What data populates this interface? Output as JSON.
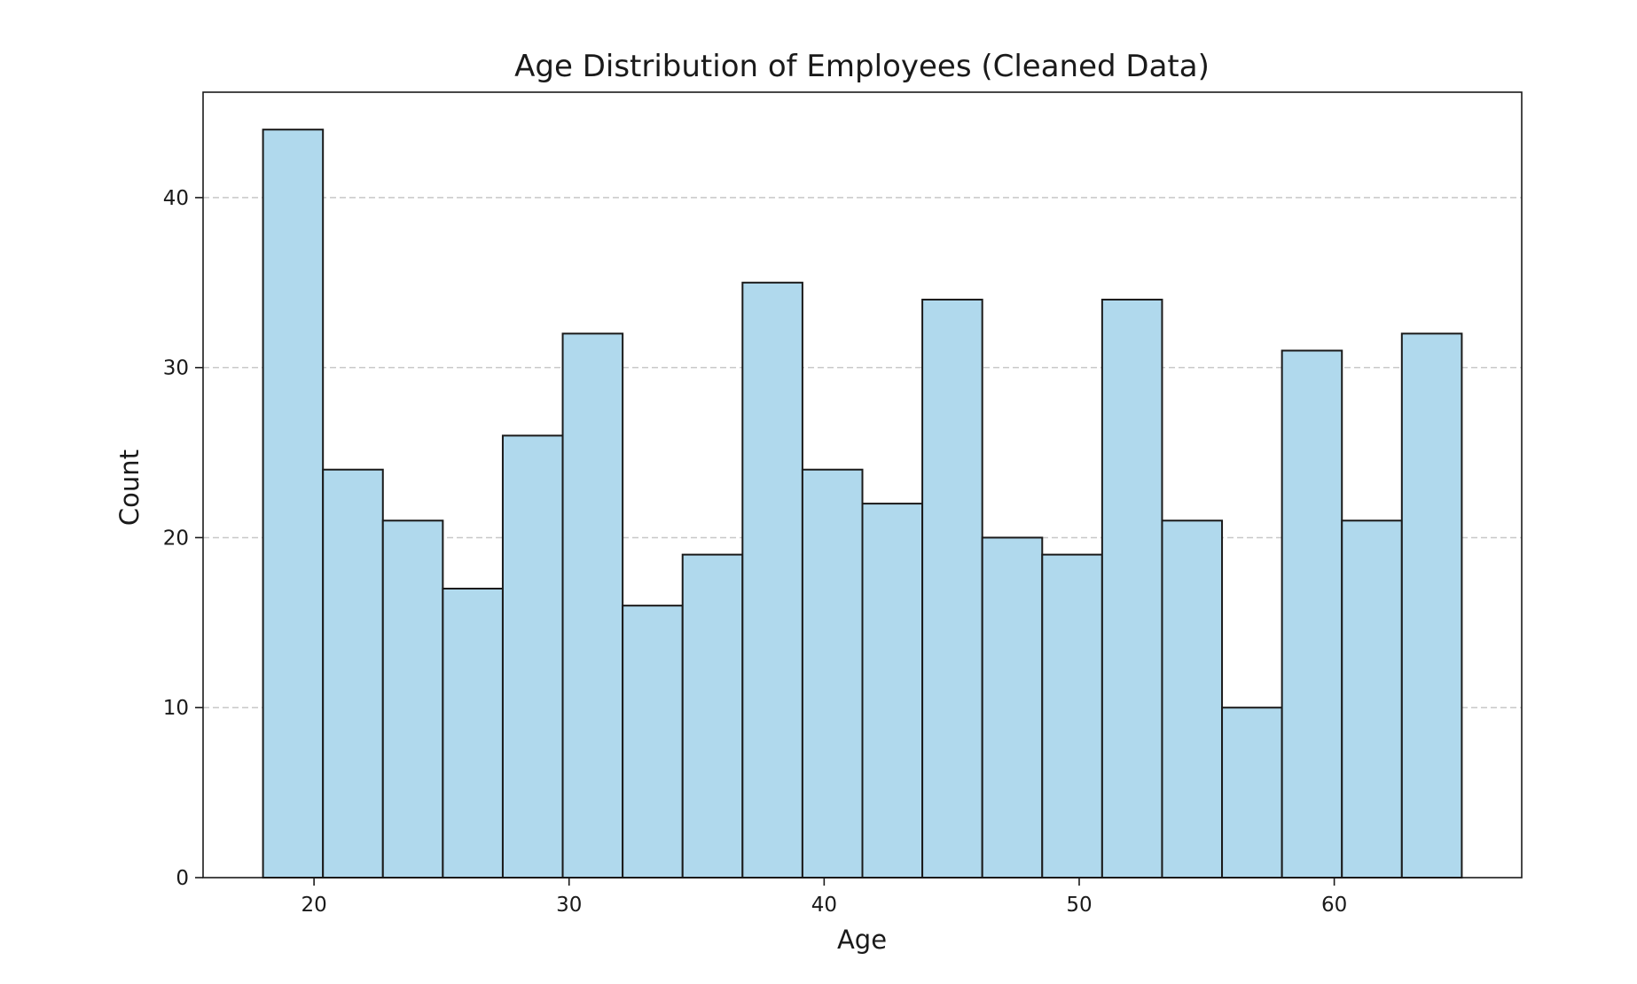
{
  "chart_data": {
    "type": "bar",
    "title": "Age Distribution of Employees (Cleaned Data)",
    "xlabel": "Age",
    "ylabel": "Count",
    "xlim": [
      15.65,
      67.35
    ],
    "ylim": [
      0,
      46.2
    ],
    "xticks": [
      20,
      30,
      40,
      50,
      60
    ],
    "yticks": [
      0,
      10,
      20,
      30,
      40
    ],
    "grid": {
      "axis": "y",
      "style": "dashed"
    },
    "bins": [
      {
        "x0": 18.0,
        "x1": 20.35,
        "count": 44
      },
      {
        "x0": 20.35,
        "x1": 22.7,
        "count": 24
      },
      {
        "x0": 22.7,
        "x1": 25.05,
        "count": 21
      },
      {
        "x0": 25.05,
        "x1": 27.4,
        "count": 17
      },
      {
        "x0": 27.4,
        "x1": 29.75,
        "count": 26
      },
      {
        "x0": 29.75,
        "x1": 32.1,
        "count": 32
      },
      {
        "x0": 32.1,
        "x1": 34.45,
        "count": 16
      },
      {
        "x0": 34.45,
        "x1": 36.8,
        "count": 19
      },
      {
        "x0": 36.8,
        "x1": 39.15,
        "count": 35
      },
      {
        "x0": 39.15,
        "x1": 41.5,
        "count": 24
      },
      {
        "x0": 41.5,
        "x1": 43.85,
        "count": 22
      },
      {
        "x0": 43.85,
        "x1": 46.2,
        "count": 34
      },
      {
        "x0": 46.2,
        "x1": 48.55,
        "count": 20
      },
      {
        "x0": 48.55,
        "x1": 50.9,
        "count": 19
      },
      {
        "x0": 50.9,
        "x1": 53.25,
        "count": 34
      },
      {
        "x0": 53.25,
        "x1": 55.6,
        "count": 21
      },
      {
        "x0": 55.6,
        "x1": 57.95,
        "count": 10
      },
      {
        "x0": 57.95,
        "x1": 60.3,
        "count": 31
      },
      {
        "x0": 60.3,
        "x1": 62.65,
        "count": 21
      },
      {
        "x0": 62.65,
        "x1": 65.0,
        "count": 32
      }
    ],
    "colors": {
      "bar_fill": "#b0d9ed",
      "bar_edge": "#1a1a1a",
      "grid": "#c8c8c8",
      "axes": "#1a1a1a"
    }
  }
}
